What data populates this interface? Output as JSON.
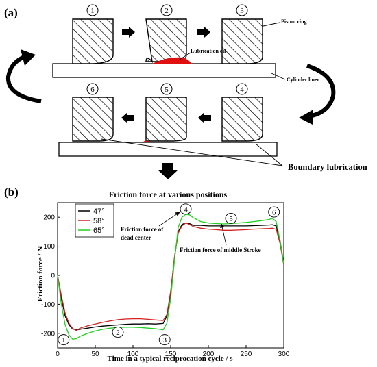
{
  "panel_a": {
    "label": "(a)",
    "positions": [
      "1",
      "2",
      "3",
      "4",
      "5",
      "6"
    ],
    "annotations": {
      "piston_ring": "Piston ring",
      "lubrication_oil": "Lubrication oil",
      "cylinder_liner": "Cylinder liner",
      "boundary_lubrication": "Boundary lubrication"
    },
    "colors": {
      "oil": "#e01010",
      "hatch": "#000000"
    }
  },
  "panel_b": {
    "label": "(b)",
    "annotations": {
      "dead_center": [
        "Friction force of",
        "dead center"
      ],
      "middle_stroke": "Friction force of middle Stroke"
    },
    "markers": [
      {
        "label": "1",
        "x": 8,
        "y": -222
      },
      {
        "label": "2",
        "x": 80,
        "y": -196
      },
      {
        "label": "3",
        "x": 142,
        "y": -222
      },
      {
        "label": "4",
        "x": 170,
        "y": 228
      },
      {
        "label": "5",
        "x": 230,
        "y": 196
      },
      {
        "label": "6",
        "x": 287,
        "y": 218
      }
    ]
  },
  "chart_data": {
    "type": "line",
    "title": "Friction force at various positions",
    "xlabel": "Time in a typical reciprocation cycle / s",
    "ylabel": "Friction force / N",
    "xlim": [
      0,
      300
    ],
    "ylim": [
      -250,
      250
    ],
    "xticks": [
      0,
      50,
      100,
      150,
      200,
      250,
      300
    ],
    "yticks": [
      -200,
      -100,
      0,
      100,
      200
    ],
    "legend_position": "top-left",
    "grid": false,
    "series": [
      {
        "name": "47°",
        "color": "#000000",
        "x": [
          0,
          5,
          10,
          15,
          20,
          25,
          30,
          40,
          50,
          60,
          70,
          80,
          90,
          100,
          110,
          120,
          130,
          140,
          145,
          150,
          155,
          160,
          165,
          170,
          175,
          180,
          190,
          200,
          210,
          220,
          230,
          240,
          250,
          260,
          270,
          280,
          285,
          290,
          295,
          300
        ],
        "y": [
          0,
          -80,
          -140,
          -170,
          -185,
          -188,
          -186,
          -182,
          -178,
          -175,
          -173,
          -171,
          -169,
          -168,
          -168,
          -167,
          -168,
          -166,
          -140,
          -60,
          60,
          150,
          175,
          180,
          178,
          172,
          172,
          170,
          170,
          170,
          170,
          170,
          170,
          171,
          172,
          173,
          174,
          170,
          120,
          40
        ]
      },
      {
        "name": "58°",
        "color": "#d42020",
        "x": [
          0,
          5,
          10,
          15,
          20,
          25,
          30,
          40,
          50,
          60,
          70,
          80,
          90,
          100,
          110,
          120,
          130,
          140,
          145,
          150,
          155,
          160,
          165,
          170,
          175,
          180,
          190,
          200,
          210,
          220,
          230,
          240,
          250,
          260,
          270,
          280,
          285,
          290,
          295,
          300
        ],
        "y": [
          0,
          -70,
          -130,
          -165,
          -183,
          -190,
          -182,
          -174,
          -168,
          -162,
          -157,
          -153,
          -151,
          -150,
          -150,
          -152,
          -154,
          -156,
          -135,
          -55,
          60,
          145,
          170,
          180,
          175,
          168,
          162,
          159,
          157,
          155,
          155,
          156,
          157,
          159,
          160,
          161,
          162,
          158,
          110,
          35
        ]
      },
      {
        "name": "65°",
        "color": "#20d020",
        "x": [
          0,
          5,
          10,
          15,
          20,
          25,
          30,
          40,
          50,
          60,
          70,
          80,
          90,
          100,
          110,
          120,
          130,
          140,
          145,
          150,
          155,
          160,
          165,
          170,
          175,
          180,
          190,
          200,
          210,
          220,
          230,
          240,
          250,
          260,
          270,
          280,
          285,
          290,
          295,
          300
        ],
        "y": [
          0,
          -100,
          -170,
          -205,
          -220,
          -218,
          -210,
          -200,
          -192,
          -186,
          -182,
          -180,
          -179,
          -179,
          -180,
          -182,
          -184,
          -188,
          -165,
          -80,
          50,
          165,
          200,
          210,
          208,
          198,
          185,
          180,
          178,
          177,
          178,
          180,
          182,
          185,
          188,
          192,
          196,
          185,
          120,
          40
        ]
      }
    ]
  }
}
